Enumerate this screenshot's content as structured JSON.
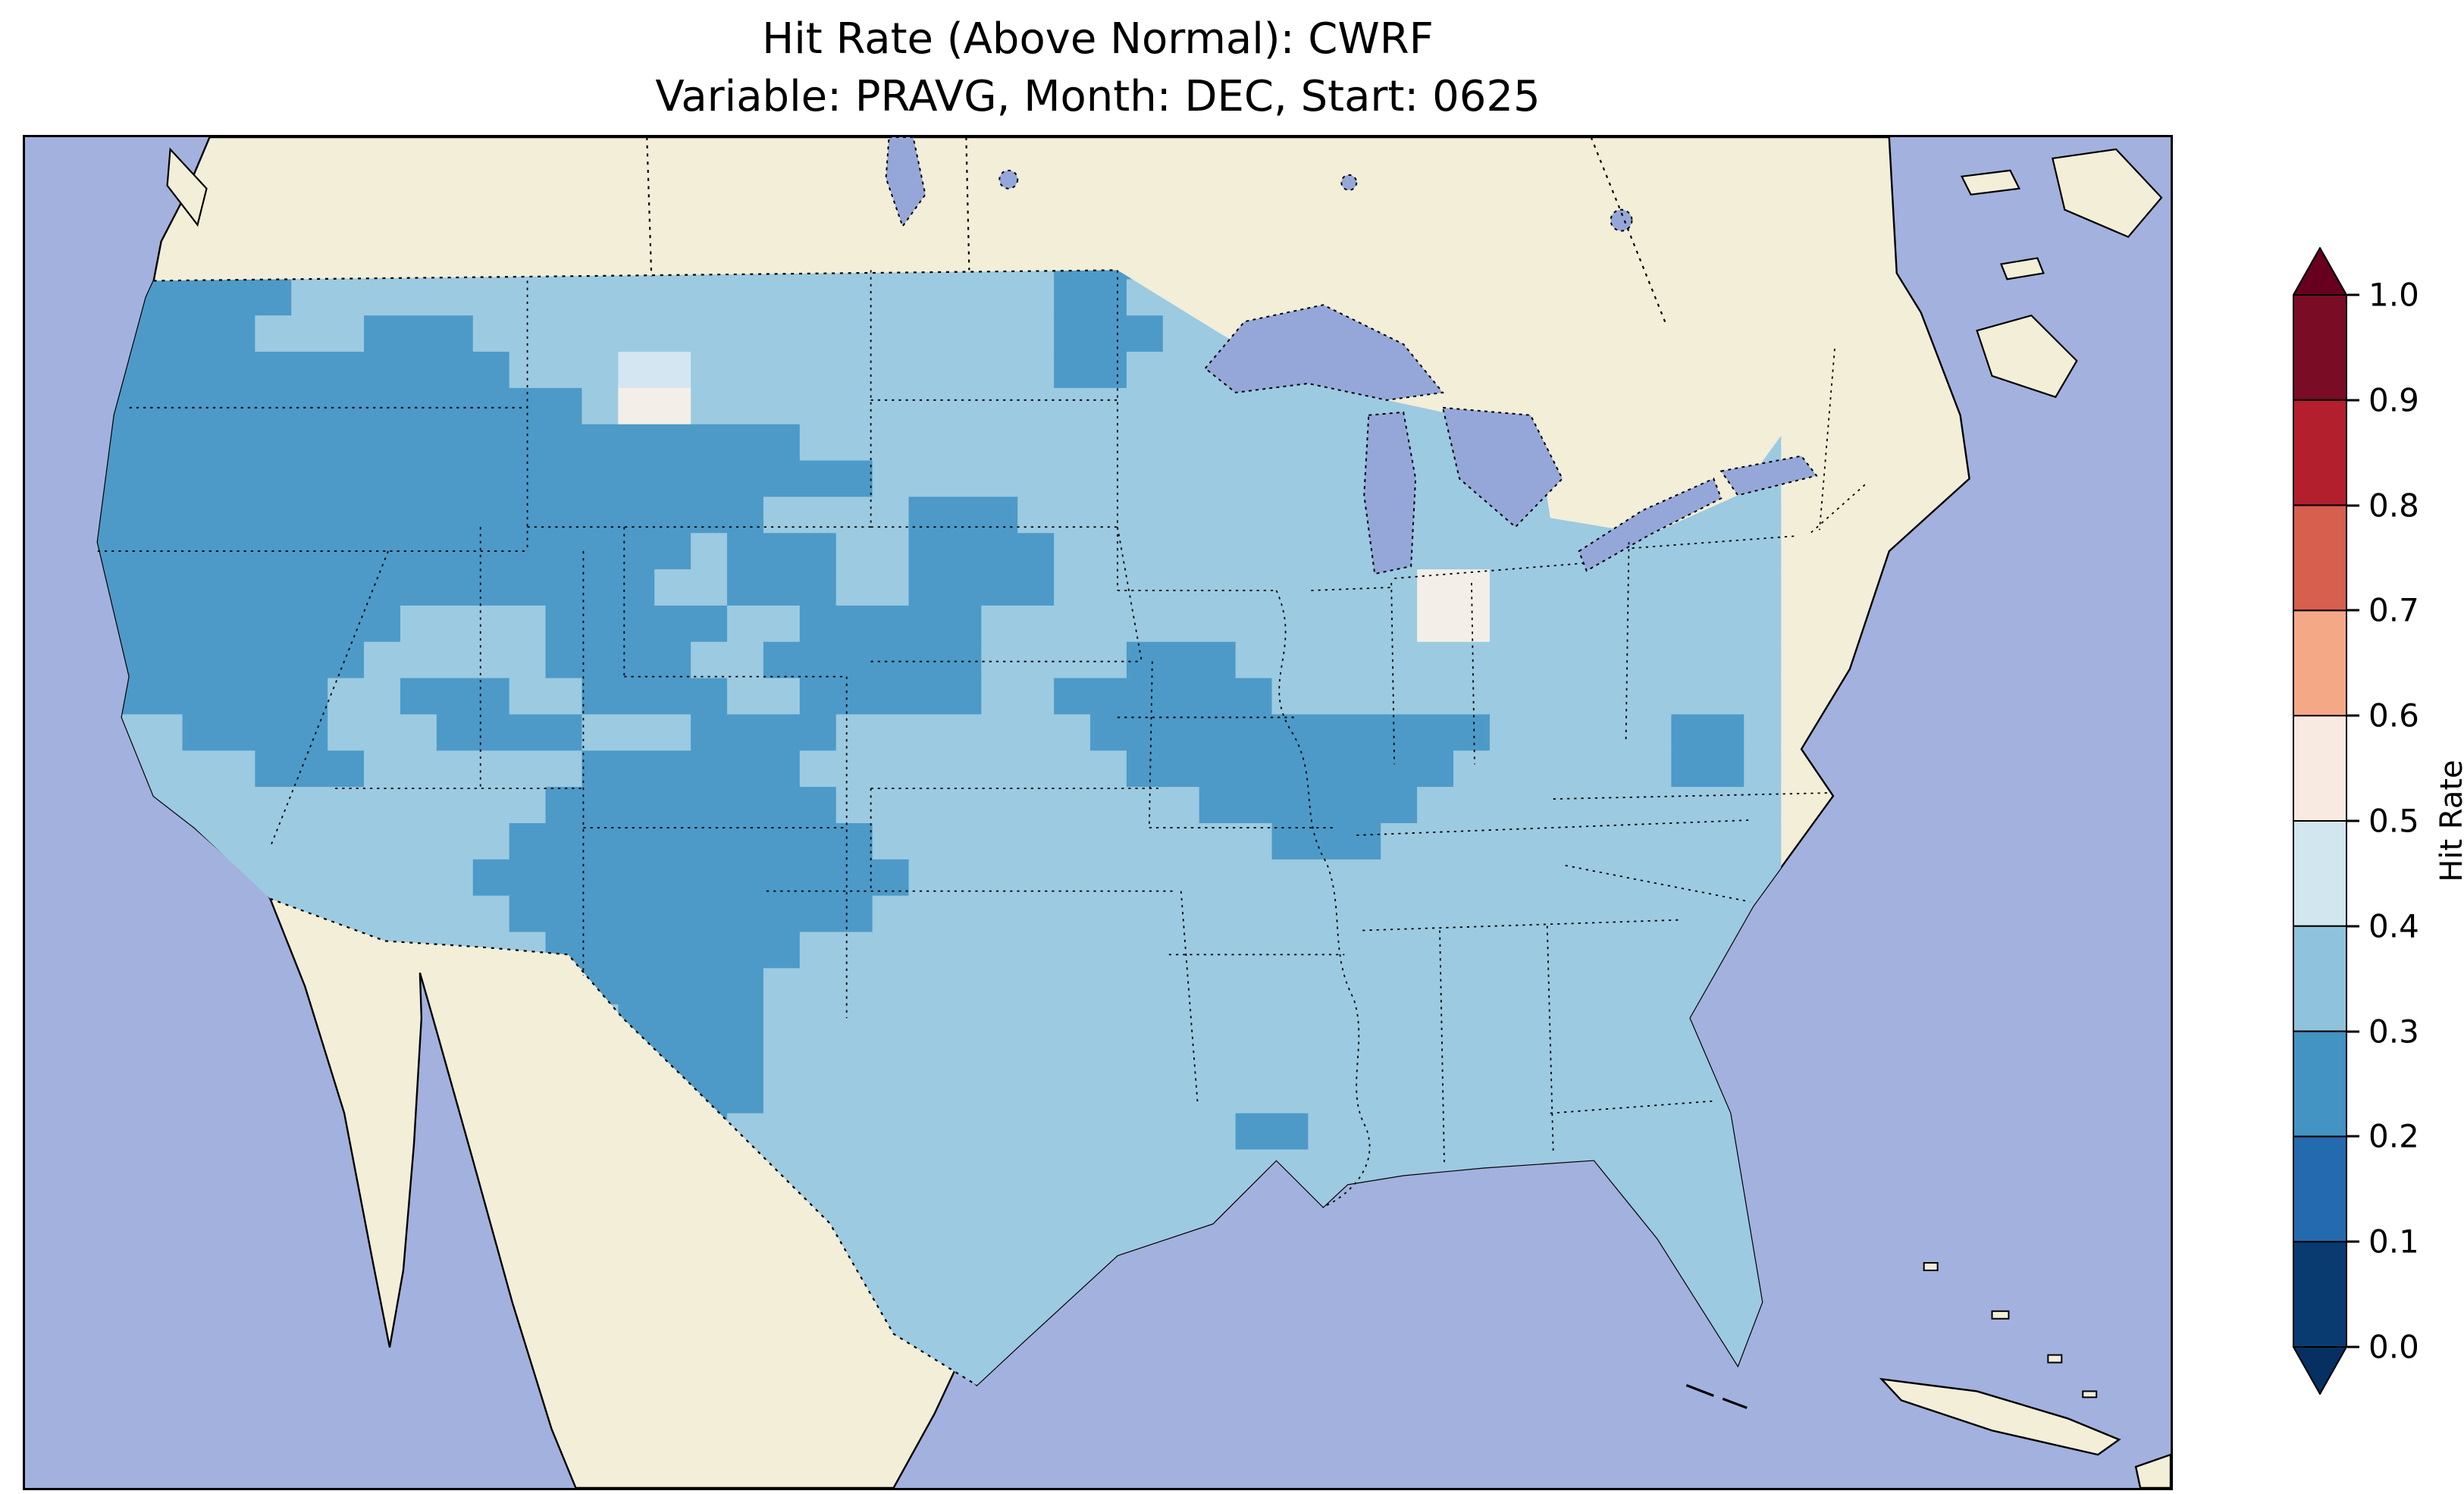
{
  "title": {
    "line1": "Hit Rate (Above Normal): CWRF",
    "line2": "Variable: PRAVG, Month: DEC, Start: 0625"
  },
  "colorbar": {
    "label": "Hit Rate",
    "ticks": [
      "1.0",
      "0.9",
      "0.8",
      "0.7",
      "0.6",
      "0.5",
      "0.4",
      "0.3",
      "0.2",
      "0.1",
      "0.0"
    ],
    "segments_top_to_bottom": [
      "#7a0c26",
      "#b41f2e",
      "#d75f4e",
      "#f5a886",
      "#f9eae1",
      "#d2e6f0",
      "#8fc2dd",
      "#4393c3",
      "#246aae",
      "#0a3b70"
    ],
    "extend_over_color": "#67001f",
    "extend_under_color": "#053061"
  },
  "colors": {
    "ocean": "#a3b1de",
    "lakes": "#95a7d9",
    "land": "#f2eed8",
    "coastline": "#000000",
    "cell": {
      "a": "#9ccae1",
      "b": "#4d9ac8",
      "c": "#d3e6f1",
      "w": "#f3efe8"
    }
  },
  "map_grid": {
    "legend": {
      "a": "hit rate 0.3-0.4",
      "b": "hit rate 0.2-0.3",
      "c": "hit rate 0.4-0.5",
      "w": "hit rate 0.5-0.6"
    },
    "rows": [
      [
        [
          "b",
          5
        ],
        [
          "a",
          22
        ],
        [
          "b",
          3
        ],
        [
          "a",
          17
        ]
      ],
      [
        [
          "b",
          6
        ],
        [
          "a",
          21
        ],
        [
          "b",
          2
        ],
        [
          "a",
          18
        ]
      ],
      [
        [
          "b",
          5
        ],
        [
          "a",
          3
        ],
        [
          "b",
          3
        ],
        [
          "a",
          16
        ],
        [
          "b",
          3
        ],
        [
          "a",
          17
        ]
      ],
      [
        [
          "b",
          12
        ],
        [
          "a",
          3
        ],
        [
          "c",
          2
        ],
        [
          "a",
          10
        ],
        [
          "b",
          2
        ],
        [
          "a",
          18
        ]
      ],
      [
        [
          "b",
          14
        ],
        [
          "a",
          1
        ],
        [
          "w",
          2
        ],
        [
          "a",
          30
        ]
      ],
      [
        [
          "b",
          20
        ],
        [
          "a",
          27
        ]
      ],
      [
        [
          "b",
          22
        ],
        [
          "a",
          25
        ]
      ],
      [
        [
          "b",
          19
        ],
        [
          "a",
          4
        ],
        [
          "b",
          3
        ],
        [
          "a",
          21
        ]
      ],
      [
        [
          "b",
          17
        ],
        [
          "a",
          1
        ],
        [
          "b",
          3
        ],
        [
          "a",
          2
        ],
        [
          "b",
          4
        ],
        [
          "a",
          20
        ]
      ],
      [
        [
          "b",
          16
        ],
        [
          "a",
          2
        ],
        [
          "b",
          3
        ],
        [
          "a",
          2
        ],
        [
          "b",
          4
        ],
        [
          "a",
          10
        ],
        [
          "w",
          2
        ],
        [
          "a",
          8
        ]
      ],
      [
        [
          "b",
          9
        ],
        [
          "a",
          4
        ],
        [
          "b",
          5
        ],
        [
          "a",
          2
        ],
        [
          "b",
          5
        ],
        [
          "a",
          12
        ],
        [
          "w",
          2
        ],
        [
          "a",
          8
        ]
      ],
      [
        [
          "b",
          8
        ],
        [
          "a",
          5
        ],
        [
          "b",
          4
        ],
        [
          "a",
          2
        ],
        [
          "b",
          6
        ],
        [
          "a",
          4
        ],
        [
          "b",
          3
        ],
        [
          "a",
          15
        ]
      ],
      [
        [
          "b",
          7
        ],
        [
          "a",
          2
        ],
        [
          "b",
          3
        ],
        [
          "a",
          2
        ],
        [
          "b",
          4
        ],
        [
          "a",
          2
        ],
        [
          "b",
          5
        ],
        [
          "a",
          2
        ],
        [
          "b",
          6
        ],
        [
          "a",
          14
        ]
      ],
      [
        [
          "a",
          3
        ],
        [
          "b",
          4
        ],
        [
          "a",
          3
        ],
        [
          "b",
          4
        ],
        [
          "a",
          3
        ],
        [
          "b",
          4
        ],
        [
          "a",
          7
        ],
        [
          "b",
          11
        ],
        [
          "a",
          5
        ],
        [
          "b",
          2
        ],
        [
          "a",
          1
        ]
      ],
      [
        [
          "a",
          5
        ],
        [
          "b",
          3
        ],
        [
          "a",
          6
        ],
        [
          "b",
          6
        ],
        [
          "a",
          9
        ],
        [
          "b",
          9
        ],
        [
          "a",
          6
        ],
        [
          "b",
          2
        ],
        [
          "a",
          1
        ]
      ],
      [
        [
          "a",
          13
        ],
        [
          "b",
          8
        ],
        [
          "a",
          10
        ],
        [
          "b",
          6
        ],
        [
          "a",
          10
        ]
      ],
      [
        [
          "a",
          12
        ],
        [
          "b",
          10
        ],
        [
          "a",
          11
        ],
        [
          "b",
          3
        ],
        [
          "a",
          11
        ]
      ],
      [
        [
          "a",
          11
        ],
        [
          "b",
          12
        ],
        [
          "a",
          24
        ]
      ],
      [
        [
          "a",
          12
        ],
        [
          "b",
          10
        ],
        [
          "a",
          25
        ]
      ],
      [
        [
          "a",
          13
        ],
        [
          "b",
          7
        ],
        [
          "a",
          27
        ]
      ],
      [
        [
          "a",
          14
        ],
        [
          "b",
          5
        ],
        [
          "a",
          28
        ]
      ],
      [
        [
          "a",
          15
        ],
        [
          "b",
          4
        ],
        [
          "a",
          28
        ]
      ],
      [
        [
          "a",
          15
        ],
        [
          "b",
          4
        ],
        [
          "a",
          28
        ]
      ],
      [
        [
          "a",
          16
        ],
        [
          "b",
          3
        ],
        [
          "a",
          28
        ]
      ],
      [
        [
          "a",
          16
        ],
        [
          "b",
          2
        ],
        [
          "a",
          14
        ],
        [
          "b",
          2
        ],
        [
          "a",
          13
        ]
      ],
      [
        [
          "a",
          16
        ],
        [
          "b",
          2
        ],
        [
          "a",
          29
        ]
      ],
      [
        [
          "a",
          47
        ]
      ],
      [
        [
          "a",
          47
        ]
      ],
      [
        [
          "a",
          47
        ]
      ],
      [
        [
          "a",
          47
        ]
      ],
      [
        [
          "a",
          42
        ],
        [
          "c",
          3
        ],
        [
          "a",
          2
        ]
      ],
      [
        [
          "a",
          15
        ],
        [
          "b",
          2
        ],
        [
          "a",
          30
        ]
      ]
    ]
  },
  "chart_data": {
    "type": "heatmap",
    "title": "Hit Rate (Above Normal): CWRF",
    "subtitle": "Variable: PRAVG, Month: DEC, Start: 0625",
    "region": "Continental United States (gridded field over CONUS, surrounding land masked)",
    "colorbar_label": "Hit Rate",
    "colorbar_range": [
      0.0,
      1.0
    ],
    "colorbar_tick_step": 0.1,
    "colormap": "diverging blue-to-red, discrete 0.1 bins with pointed over/under extensions",
    "value_bins_visible_on_map": [
      "0.2-0.3",
      "0.3-0.4",
      "0.4-0.5",
      "0.5-0.6"
    ],
    "dominant_bin": "0.3-0.4",
    "notes": "Darker 0.2-0.3 blues cover the West (CA/NV/UT/ID/OR/WA), WY/CO, NM, TX/OK, a MO-KY-TN band, northern MN, coastal NC and southern LA; two near-white 0.5-0.6 spots in E Montana and S Wisconsin"
  }
}
